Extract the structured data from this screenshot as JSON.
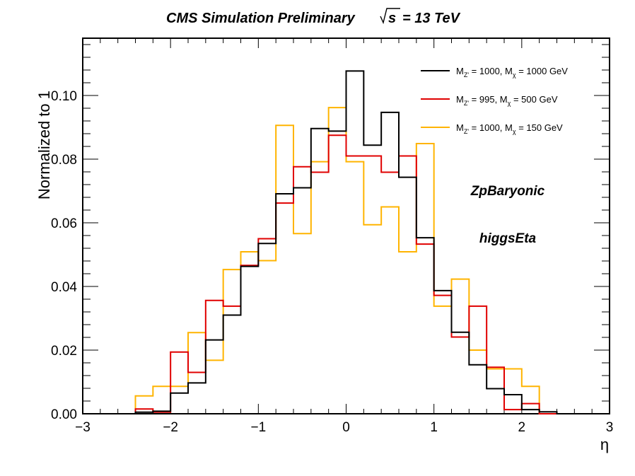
{
  "chart_data": {
    "type": "step",
    "title": "CMS Simulation Preliminary",
    "title_energy": "= 13 TeV",
    "xlabel": "η",
    "ylabel": "Normalized to 1",
    "xlim": [
      -3,
      3
    ],
    "ylim": [
      0,
      0.118
    ],
    "x_ticks": [
      -3,
      -2,
      -1,
      0,
      1,
      2,
      3
    ],
    "x_tick_labels": [
      "−3",
      "−2",
      "−1",
      "0",
      "1",
      "2",
      "3"
    ],
    "y_ticks": [
      0,
      0.02,
      0.04,
      0.06,
      0.08,
      0.1
    ],
    "y_tick_labels": [
      "0.00",
      "0.02",
      "0.04",
      "0.06",
      "0.08",
      "0.10"
    ],
    "bin_edges": [
      -3.0,
      -2.8,
      -2.6,
      -2.4,
      -2.2,
      -2.0,
      -1.8,
      -1.6,
      -1.4,
      -1.2,
      -1.0,
      -0.8,
      -0.6,
      -0.4,
      -0.2,
      0.0,
      0.2,
      0.4,
      0.6,
      0.8,
      1.0,
      1.2,
      1.4,
      1.6,
      1.8,
      2.0,
      2.2,
      2.4,
      2.6,
      2.8,
      3.0
    ],
    "series": [
      {
        "name": "M_Z' = 1000, M_χ = 1000 GeV",
        "color": "#000000",
        "values": [
          0,
          0,
          0,
          0.0005,
          0.0008,
          0.0065,
          0.0097,
          0.0232,
          0.031,
          0.0463,
          0.0535,
          0.0691,
          0.071,
          0.0896,
          0.0888,
          0.1077,
          0.0844,
          0.0947,
          0.0743,
          0.0553,
          0.0387,
          0.0256,
          0.0154,
          0.0079,
          0.006,
          0.0013,
          0.0006,
          0,
          0,
          0
        ]
      },
      {
        "name": "M_Z' = 995, M_χ = 500 GeV",
        "color": "#e00000",
        "values": [
          0,
          0,
          0,
          0.0015,
          0.0005,
          0.0194,
          0.013,
          0.0356,
          0.0338,
          0.0466,
          0.055,
          0.0662,
          0.0776,
          0.0759,
          0.0875,
          0.081,
          0.081,
          0.0759,
          0.081,
          0.0533,
          0.0372,
          0.0241,
          0.0338,
          0.0146,
          0.0013,
          0.0032,
          0,
          0,
          0,
          0
        ]
      },
      {
        "name": "M_Z' = 1000, M_χ = 150 GeV",
        "color": "#ffb400",
        "values": [
          0,
          0,
          0,
          0.0056,
          0.0086,
          0.0086,
          0.0255,
          0.0168,
          0.0453,
          0.0509,
          0.0481,
          0.0906,
          0.0566,
          0.0792,
          0.0962,
          0.0792,
          0.0594,
          0.065,
          0.0509,
          0.0849,
          0.0338,
          0.0423,
          0.02,
          0.0141,
          0.0141,
          0.0086,
          0,
          0,
          0,
          0
        ]
      }
    ],
    "legend": {
      "placement": "top-right",
      "entries": [
        {
          "main": "M",
          "sub1": "Z'",
          "mid": " = 1000, M",
          "sub2": "χ",
          "tail": " = 1000 GeV"
        },
        {
          "main": "M",
          "sub1": "Z'",
          "mid": " = 995, M",
          "sub2": "χ",
          "tail": " = 500 GeV"
        },
        {
          "main": "M",
          "sub1": "Z'",
          "mid": " = 1000, M",
          "sub2": "χ",
          "tail": " = 150 GeV"
        }
      ]
    },
    "annotations": [
      "ZpBaryonic",
      "higgsEta"
    ],
    "grid": false
  }
}
